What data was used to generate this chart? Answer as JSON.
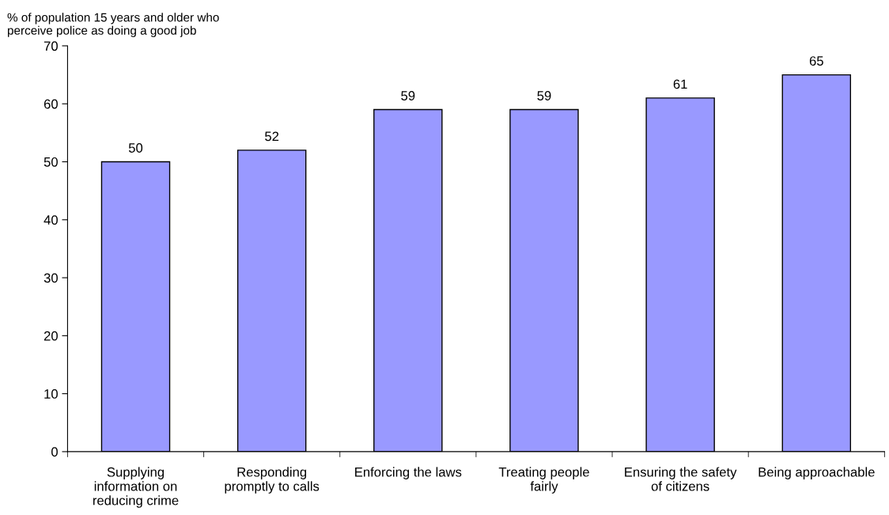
{
  "chart_data": {
    "type": "bar",
    "ylabel": "% of population 15 years and older who\nperceive police as doing a good job",
    "categories": [
      "Supplying\ninformation on\nreducing crime",
      "Responding\npromptly to calls",
      "Enforcing the laws",
      "Treating people\nfairly",
      "Ensuring the safety\nof citizens",
      "Being approachable"
    ],
    "values": [
      50,
      52,
      59,
      59,
      61,
      65
    ],
    "color": "#9999ff",
    "ylim": [
      0,
      70
    ],
    "yticks": [
      0,
      10,
      20,
      30,
      40,
      50,
      60,
      70
    ],
    "data_labels": true,
    "grid": false
  }
}
